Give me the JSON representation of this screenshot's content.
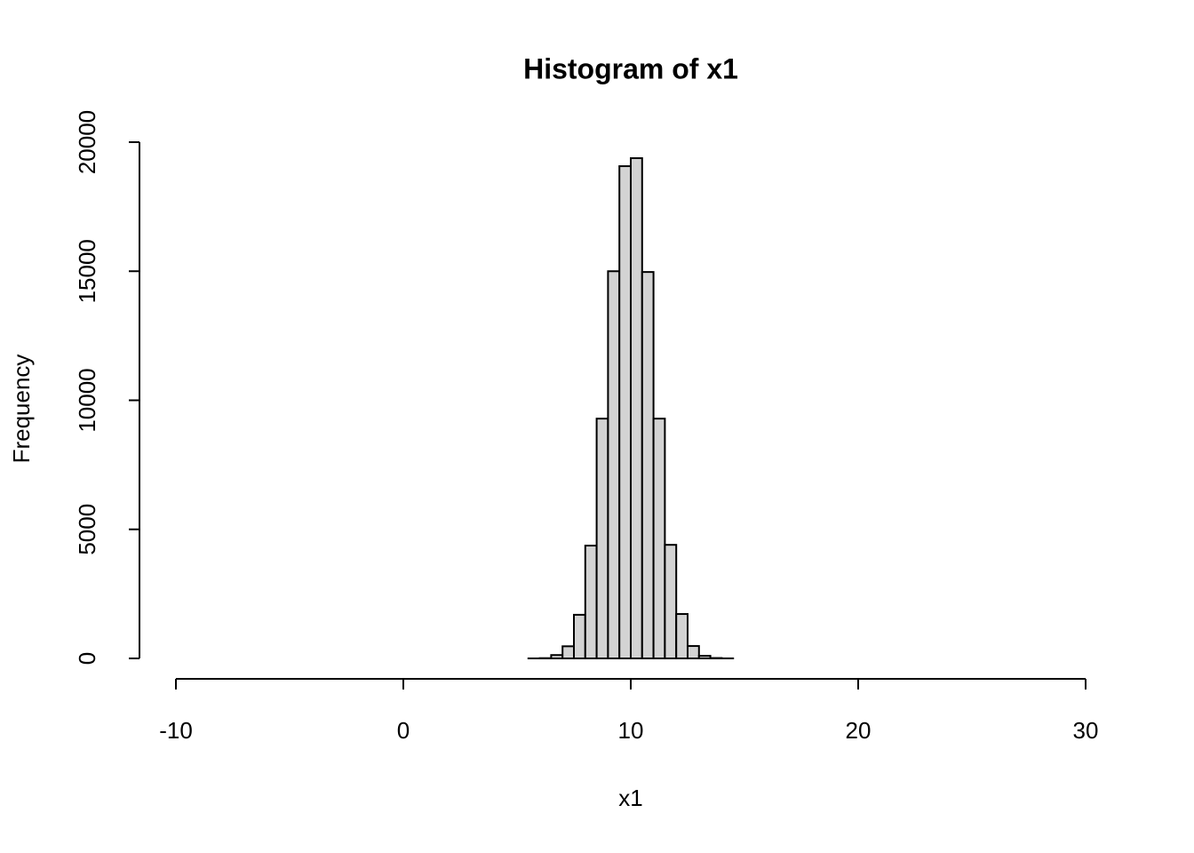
{
  "chart_data": {
    "type": "histogram",
    "title": "Histogram of x1",
    "xlabel": "x1",
    "ylabel": "Frequency",
    "bins": [
      5.5,
      6,
      6.5,
      7,
      7.5,
      8,
      8.5,
      9,
      9.5,
      10,
      10.5,
      11,
      11.5,
      12,
      12.5,
      13,
      13.5,
      14,
      14.5
    ],
    "counts": [
      1,
      10,
      130,
      470,
      1690,
      4370,
      9290,
      15000,
      19070,
      19380,
      14970,
      9290,
      4400,
      1720,
      480,
      100,
      15,
      2
    ],
    "color": "#d3d3d3",
    "xlim": [
      -10,
      30
    ],
    "xticks": [
      -10,
      0,
      10,
      20,
      30
    ],
    "ylim": [
      0,
      20000
    ],
    "yticks": [
      0,
      5000,
      10000,
      15000,
      20000
    ]
  }
}
